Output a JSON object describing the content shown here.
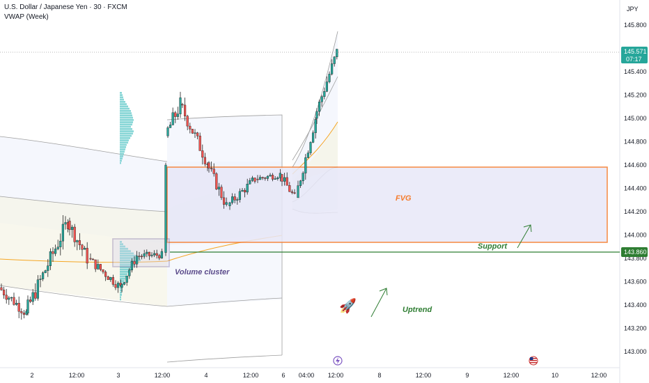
{
  "header": {
    "title": "U.S. Dollar / Japanese Yen · 30 · FXCM",
    "indicator": "VWAP (Week)"
  },
  "price_axis": {
    "currency": "JPY",
    "ticks": [
      "145.800",
      "145.600",
      "145.400",
      "145.200",
      "145.000",
      "144.800",
      "144.600",
      "144.400",
      "144.200",
      "144.000",
      "143.800",
      "143.600",
      "143.400",
      "143.200",
      "143.000"
    ],
    "current_price": "145.571",
    "countdown": "07:17",
    "support_label": "143.860"
  },
  "time_axis": {
    "ticks": [
      "2",
      "12:00",
      "3",
      "12:00",
      "4",
      "12:00",
      "6",
      "04:00",
      "12:00",
      "8",
      "12:00",
      "9",
      "12:00",
      "10",
      "12:00"
    ]
  },
  "annotations": {
    "fvg": "FVG",
    "support": "Support",
    "volume_cluster": "Volume cluster",
    "uptrend": "Uptrend",
    "rocket": "🚀"
  },
  "colors": {
    "up": "#26a69a",
    "down": "#ef5350",
    "candle": "#1e1e1e",
    "fvg_border": "#f57c2d",
    "fvg_fill": "#e8e8f8",
    "support": "#2e7d32",
    "cluster_border": "#6a5a9a",
    "volume_profile": "#5fc8c8"
  },
  "chart_data": {
    "type": "candlestick",
    "symbol": "USDJPY",
    "interval": "30",
    "ylim": [
      142.9,
      145.95
    ],
    "current_price": 145.571,
    "support_level": 143.86,
    "fvg_zone": [
      143.95,
      144.59
    ],
    "price_path": [
      {
        "t": 0,
        "p": 143.62
      },
      {
        "t": 0.06,
        "p": 143.45
      },
      {
        "t": 0.1,
        "p": 143.32
      },
      {
        "t": 0.16,
        "p": 143.55
      },
      {
        "t": 0.22,
        "p": 143.9
      },
      {
        "t": 0.26,
        "p": 144.15
      },
      {
        "t": 0.3,
        "p": 143.95
      },
      {
        "t": 0.35,
        "p": 143.78
      },
      {
        "t": 0.4,
        "p": 143.7
      },
      {
        "t": 0.45,
        "p": 143.62
      },
      {
        "t": 0.5,
        "p": 143.55
      },
      {
        "t": 0.55,
        "p": 143.8
      },
      {
        "t": 0.62,
        "p": 143.86
      },
      {
        "t": 0.7,
        "p": 143.83
      },
      {
        "t": 0.75,
        "p": 143.88
      }
    ]
  }
}
